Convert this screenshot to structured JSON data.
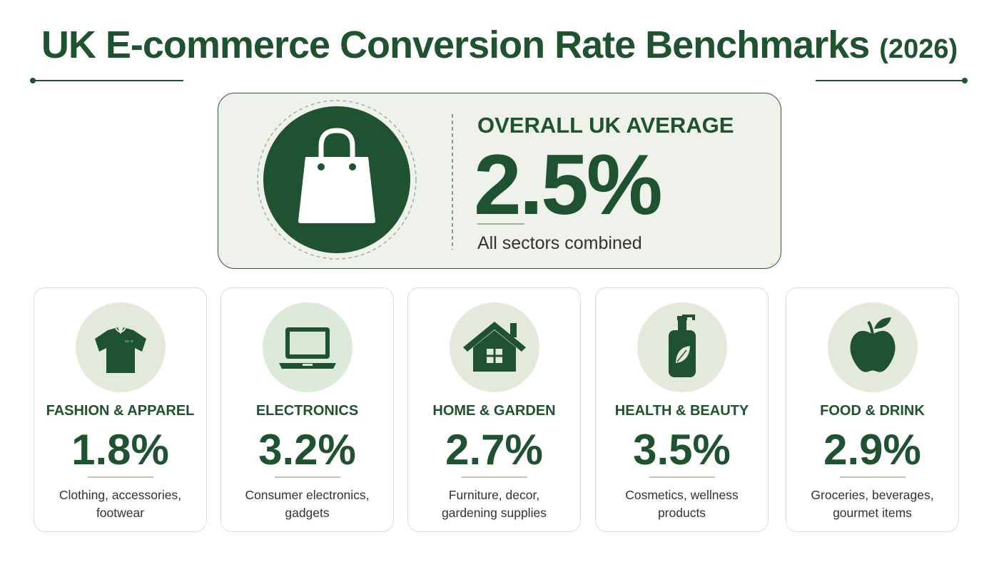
{
  "header": {
    "title": "UK E-commerce Conversion Rate Benchmarks",
    "year": "(2026)"
  },
  "overall": {
    "label": "OVERALL UK AVERAGE",
    "value": "2.5%",
    "note": "All sectors combined"
  },
  "sectors": [
    {
      "name": "FASHION & APPAREL",
      "value": "1.8%",
      "description": "Clothing, accessories, footwear"
    },
    {
      "name": "ELECTRONICS",
      "value": "3.2%",
      "description": "Consumer electronics, gadgets"
    },
    {
      "name": "HOME & GARDEN",
      "value": "2.7%",
      "description": "Furniture, decor, gardening supplies"
    },
    {
      "name": "HEALTH & BEAUTY",
      "value": "3.5%",
      "description": "Cosmetics, wellness products"
    },
    {
      "name": "FOOD & DRINK",
      "value": "2.9%",
      "description": "Groceries, beverages, gourmet items"
    }
  ]
}
